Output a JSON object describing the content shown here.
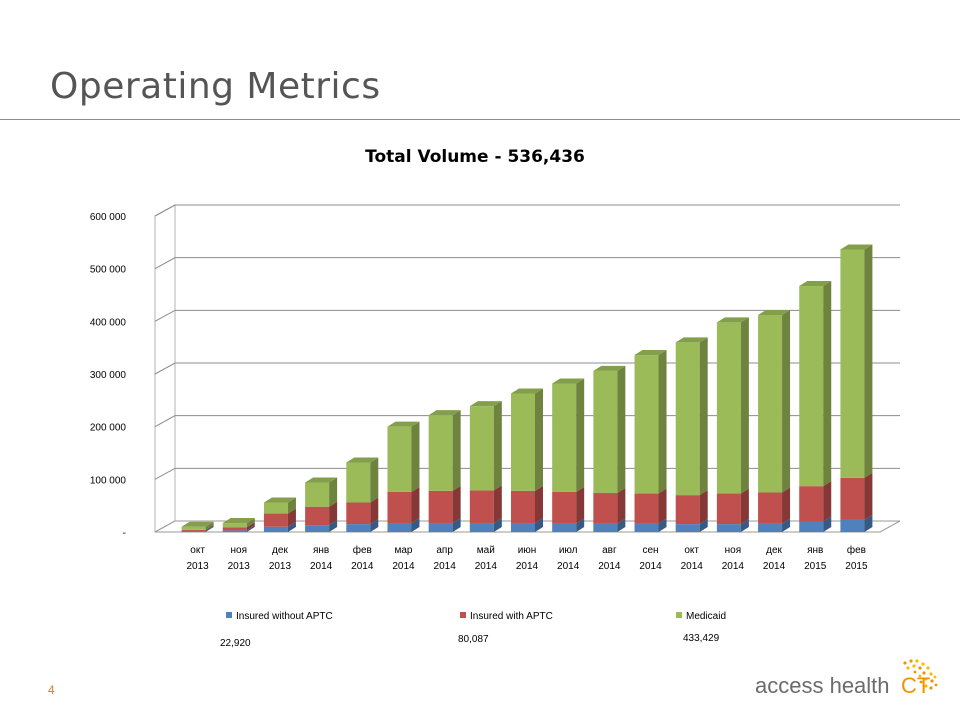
{
  "slide": {
    "title": "Operating Metrics",
    "page_number": "4",
    "logo_text_main": "access health",
    "logo_text_suffix": "CT"
  },
  "colors": {
    "series_1": "#4f81bd",
    "series_2": "#c0504d",
    "series_3": "#9bbb59",
    "title_text": "#555555",
    "page_number": "#e07a20",
    "logo_grey": "#6b6b6b",
    "logo_orange": "#f39200"
  },
  "chart_data": {
    "type": "bar",
    "stacked": true,
    "three_d": true,
    "title": "Total Volume - 536,436",
    "categories": [
      [
        "окт",
        "2013"
      ],
      [
        "ноя",
        "2013"
      ],
      [
        "дек",
        "2013"
      ],
      [
        "янв",
        "2014"
      ],
      [
        "фев",
        "2014"
      ],
      [
        "мар",
        "2014"
      ],
      [
        "апр",
        "2014"
      ],
      [
        "май",
        "2014"
      ],
      [
        "июн",
        "2014"
      ],
      [
        "июл",
        "2014"
      ],
      [
        "авг",
        "2014"
      ],
      [
        "сен",
        "2014"
      ],
      [
        "окт",
        "2014"
      ],
      [
        "ноя",
        "2014"
      ],
      [
        "дек",
        "2014"
      ],
      [
        "янв",
        "2015"
      ],
      [
        "фев",
        "2015"
      ]
    ],
    "series": [
      {
        "name": "Insured without APTC",
        "values": [
          2000,
          3000,
          10000,
          13000,
          15000,
          17000,
          17000,
          17000,
          17000,
          16000,
          16000,
          16000,
          15000,
          15000,
          16000,
          20000,
          22920
        ]
      },
      {
        "name": "Insured with APTC",
        "values": [
          2000,
          6000,
          25000,
          35000,
          41000,
          59000,
          61000,
          62000,
          61000,
          60000,
          58000,
          57000,
          55000,
          58000,
          59000,
          67000,
          80087
        ]
      },
      {
        "name": "Medicaid",
        "values": [
          6000,
          8000,
          21000,
          46000,
          76000,
          124000,
          144000,
          160000,
          185000,
          206000,
          232000,
          263000,
          290000,
          325000,
          337000,
          380000,
          433429
        ]
      }
    ],
    "y_ticks": [
      "-",
      "100 000",
      "200 000",
      "300 000",
      "400 000",
      "500 000",
      "600 000"
    ],
    "ylim": [
      0,
      600000
    ],
    "grid": true,
    "legend_position": "bottom",
    "legend_totals": [
      "22,920",
      "80,087",
      "433,429"
    ]
  }
}
